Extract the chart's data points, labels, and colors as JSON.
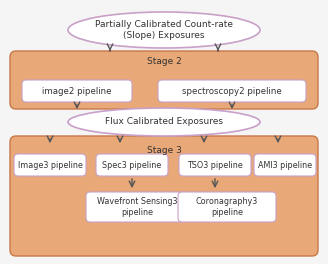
{
  "bg_color": "#f5dfc0",
  "oval_fill": "#ffffff",
  "oval_edge": "#c8a0c8",
  "rect_fill": "#ffffff",
  "rect_edge": "#c8a0c8",
  "stage_fill": "#e8a878",
  "stage_edge": "#c8784a",
  "arrow_color": "#555555",
  "text_color": "#333333",
  "stage2_label": "Stage 2",
  "stage3_label": "Stage 3",
  "top_oval_text": "Partially Calibrated Count-rate\n(Slope) Exposures",
  "mid_oval_text": "Flux Calibrated Exposures",
  "stage2_boxes": [
    "image2 pipeline",
    "spectroscopy2 pipeline"
  ],
  "stage3_boxes": [
    "Image3 pipeline",
    "Spec3 pipeline",
    "TSO3 pipeline",
    "AMI3 pipeline"
  ],
  "sub_boxes": [
    {
      "text": "Wavefront Sensing3\npipeline",
      "parent_idx": 1
    },
    {
      "text": "Coronagraphy3\npipeline",
      "parent_idx": 2
    }
  ]
}
